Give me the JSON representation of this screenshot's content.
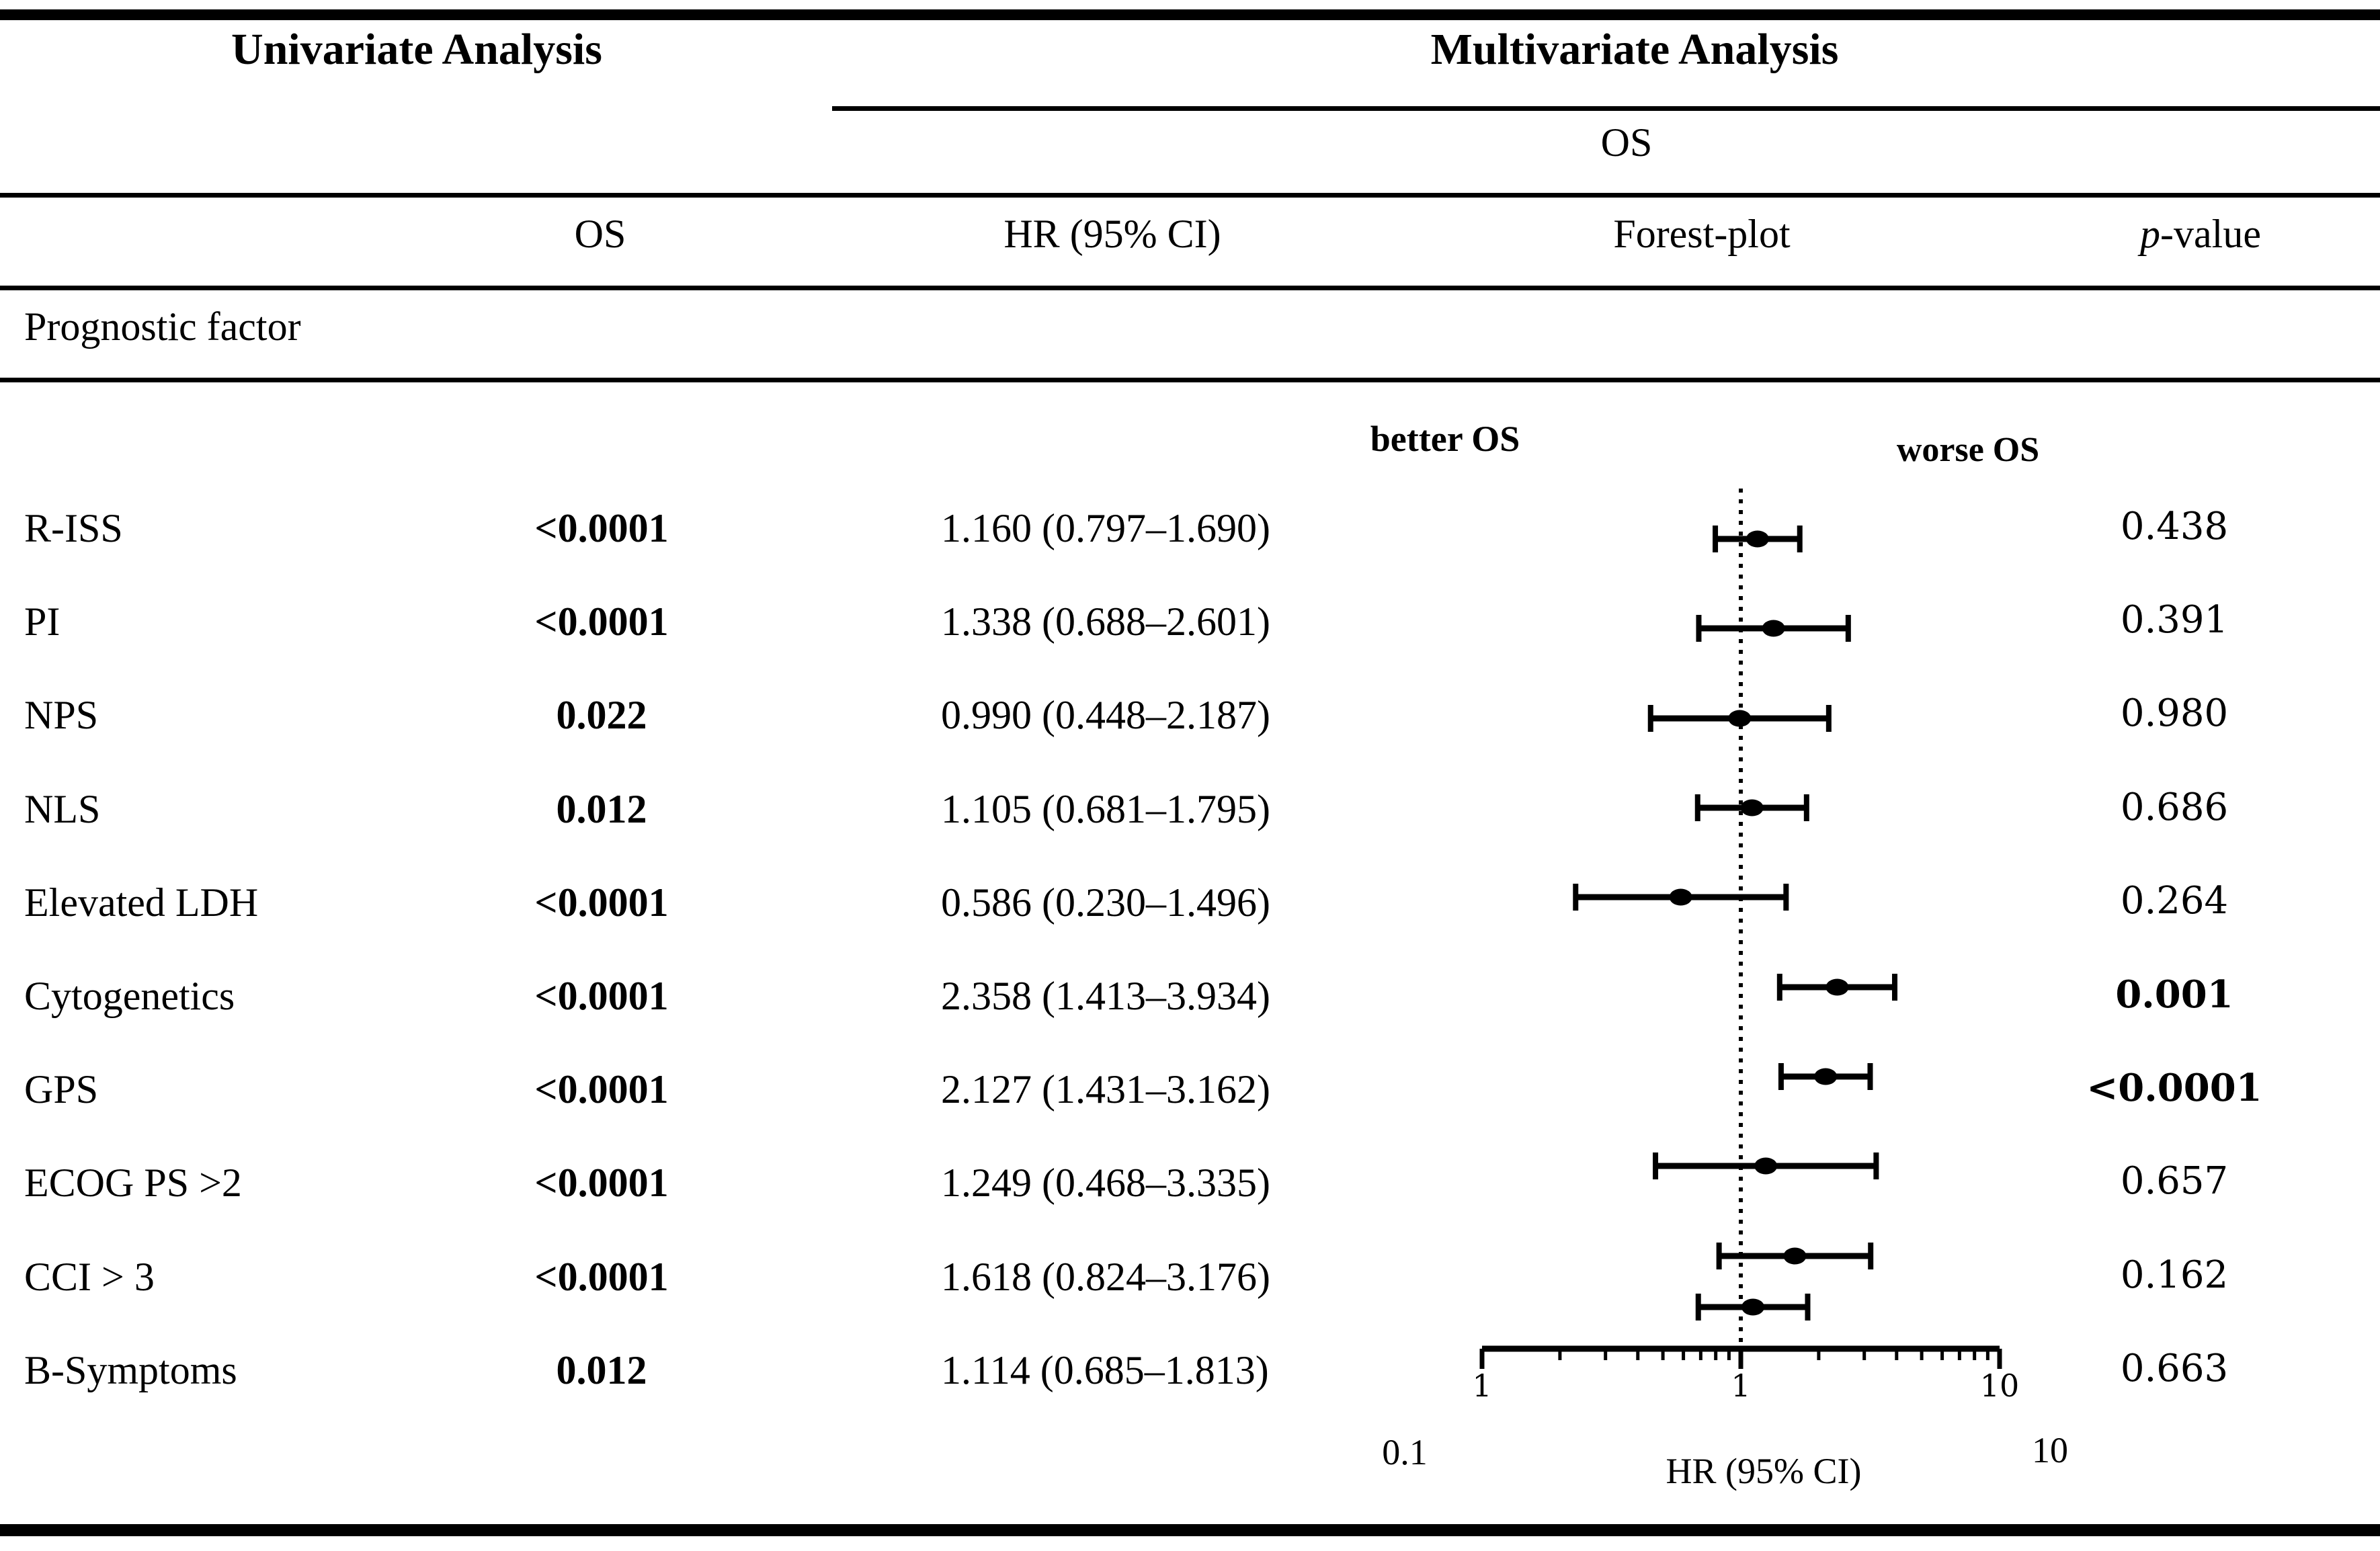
{
  "table": {
    "header": {
      "univariate": "Univariate Analysis",
      "multivariate": "Multivariate Analysis",
      "multivariate_sub": "OS",
      "col_os": "OS",
      "col_hr": "HR (95% CI)",
      "col_forest": "Forest-plot",
      "col_p_italic": "p",
      "col_p_rest": "-value",
      "section_label": "Prognostic factor"
    },
    "rows": [
      {
        "factor": "R-ISS",
        "univariate_os_p": "<0.0001",
        "hr_ci": "1.160 (0.797–1.690)",
        "p_value": "0.438",
        "p_bold": false
      },
      {
        "factor": "PI",
        "univariate_os_p": "<0.0001",
        "hr_ci": "1.338 (0.688–2.601)",
        "p_value": "0.391",
        "p_bold": false
      },
      {
        "factor": "NPS",
        "univariate_os_p": "0.022",
        "hr_ci": "0.990 (0.448–2.187)",
        "p_value": "0.980",
        "p_bold": false
      },
      {
        "factor": "NLS",
        "univariate_os_p": "0.012",
        "hr_ci": "1.105 (0.681–1.795)",
        "p_value": "0.686",
        "p_bold": false
      },
      {
        "factor": "Elevated LDH",
        "univariate_os_p": "<0.0001",
        "hr_ci": "0.586 (0.230–1.496)",
        "p_value": "0.264",
        "p_bold": false
      },
      {
        "factor": "Cytogenetics",
        "univariate_os_p": "<0.0001",
        "hr_ci": "2.358 (1.413–3.934)",
        "p_value": "0.001",
        "p_bold": true
      },
      {
        "factor": "GPS",
        "univariate_os_p": "<0.0001",
        "hr_ci": "2.127 (1.431–3.162)",
        "p_value": "<0.0001",
        "p_bold": true
      },
      {
        "factor": "ECOG PS >2",
        "univariate_os_p": "<0.0001",
        "hr_ci": "1.249 (0.468–3.335)",
        "p_value": "0.657",
        "p_bold": false
      },
      {
        "factor": "CCI > 3",
        "univariate_os_p": "<0.0001",
        "hr_ci": "1.618 (0.824–3.176)",
        "p_value": "0.162",
        "p_bold": false
      },
      {
        "factor": "B-Symptoms",
        "univariate_os_p": "0.012",
        "hr_ci": "1.114 (0.685–1.813)",
        "p_value": "0.663",
        "p_bold": false
      }
    ]
  },
  "chart_data": {
    "type": "scatter",
    "variant": "forest-plot",
    "x_scale": "log10",
    "xlim": [
      0.1,
      10
    ],
    "reference_line": 1.0,
    "better_label": "better OS",
    "worse_label": "worse OS",
    "axis_tick_labels": [
      "1",
      "1",
      "10"
    ],
    "bottom_left_label": "0.1",
    "bottom_center_label": "HR (95% CI)",
    "bottom_right_label": "10",
    "points": [
      {
        "label": "R-ISS",
        "hr": 1.16,
        "ci_low": 0.797,
        "ci_high": 1.69
      },
      {
        "label": "PI",
        "hr": 1.338,
        "ci_low": 0.688,
        "ci_high": 2.601
      },
      {
        "label": "NPS",
        "hr": 0.99,
        "ci_low": 0.448,
        "ci_high": 2.187
      },
      {
        "label": "NLS",
        "hr": 1.105,
        "ci_low": 0.681,
        "ci_high": 1.795
      },
      {
        "label": "Elevated LDH",
        "hr": 0.586,
        "ci_low": 0.23,
        "ci_high": 1.496
      },
      {
        "label": "Cytogenetics",
        "hr": 2.358,
        "ci_low": 1.413,
        "ci_high": 3.934
      },
      {
        "label": "GPS",
        "hr": 2.127,
        "ci_low": 1.431,
        "ci_high": 3.162
      },
      {
        "label": "ECOG PS >2",
        "hr": 1.249,
        "ci_low": 0.468,
        "ci_high": 3.335
      },
      {
        "label": "CCI > 3",
        "hr": 1.618,
        "ci_low": 0.824,
        "ci_high": 3.176
      },
      {
        "label": "B-Symptoms",
        "hr": 1.114,
        "ci_low": 0.685,
        "ci_high": 1.813
      }
    ]
  }
}
